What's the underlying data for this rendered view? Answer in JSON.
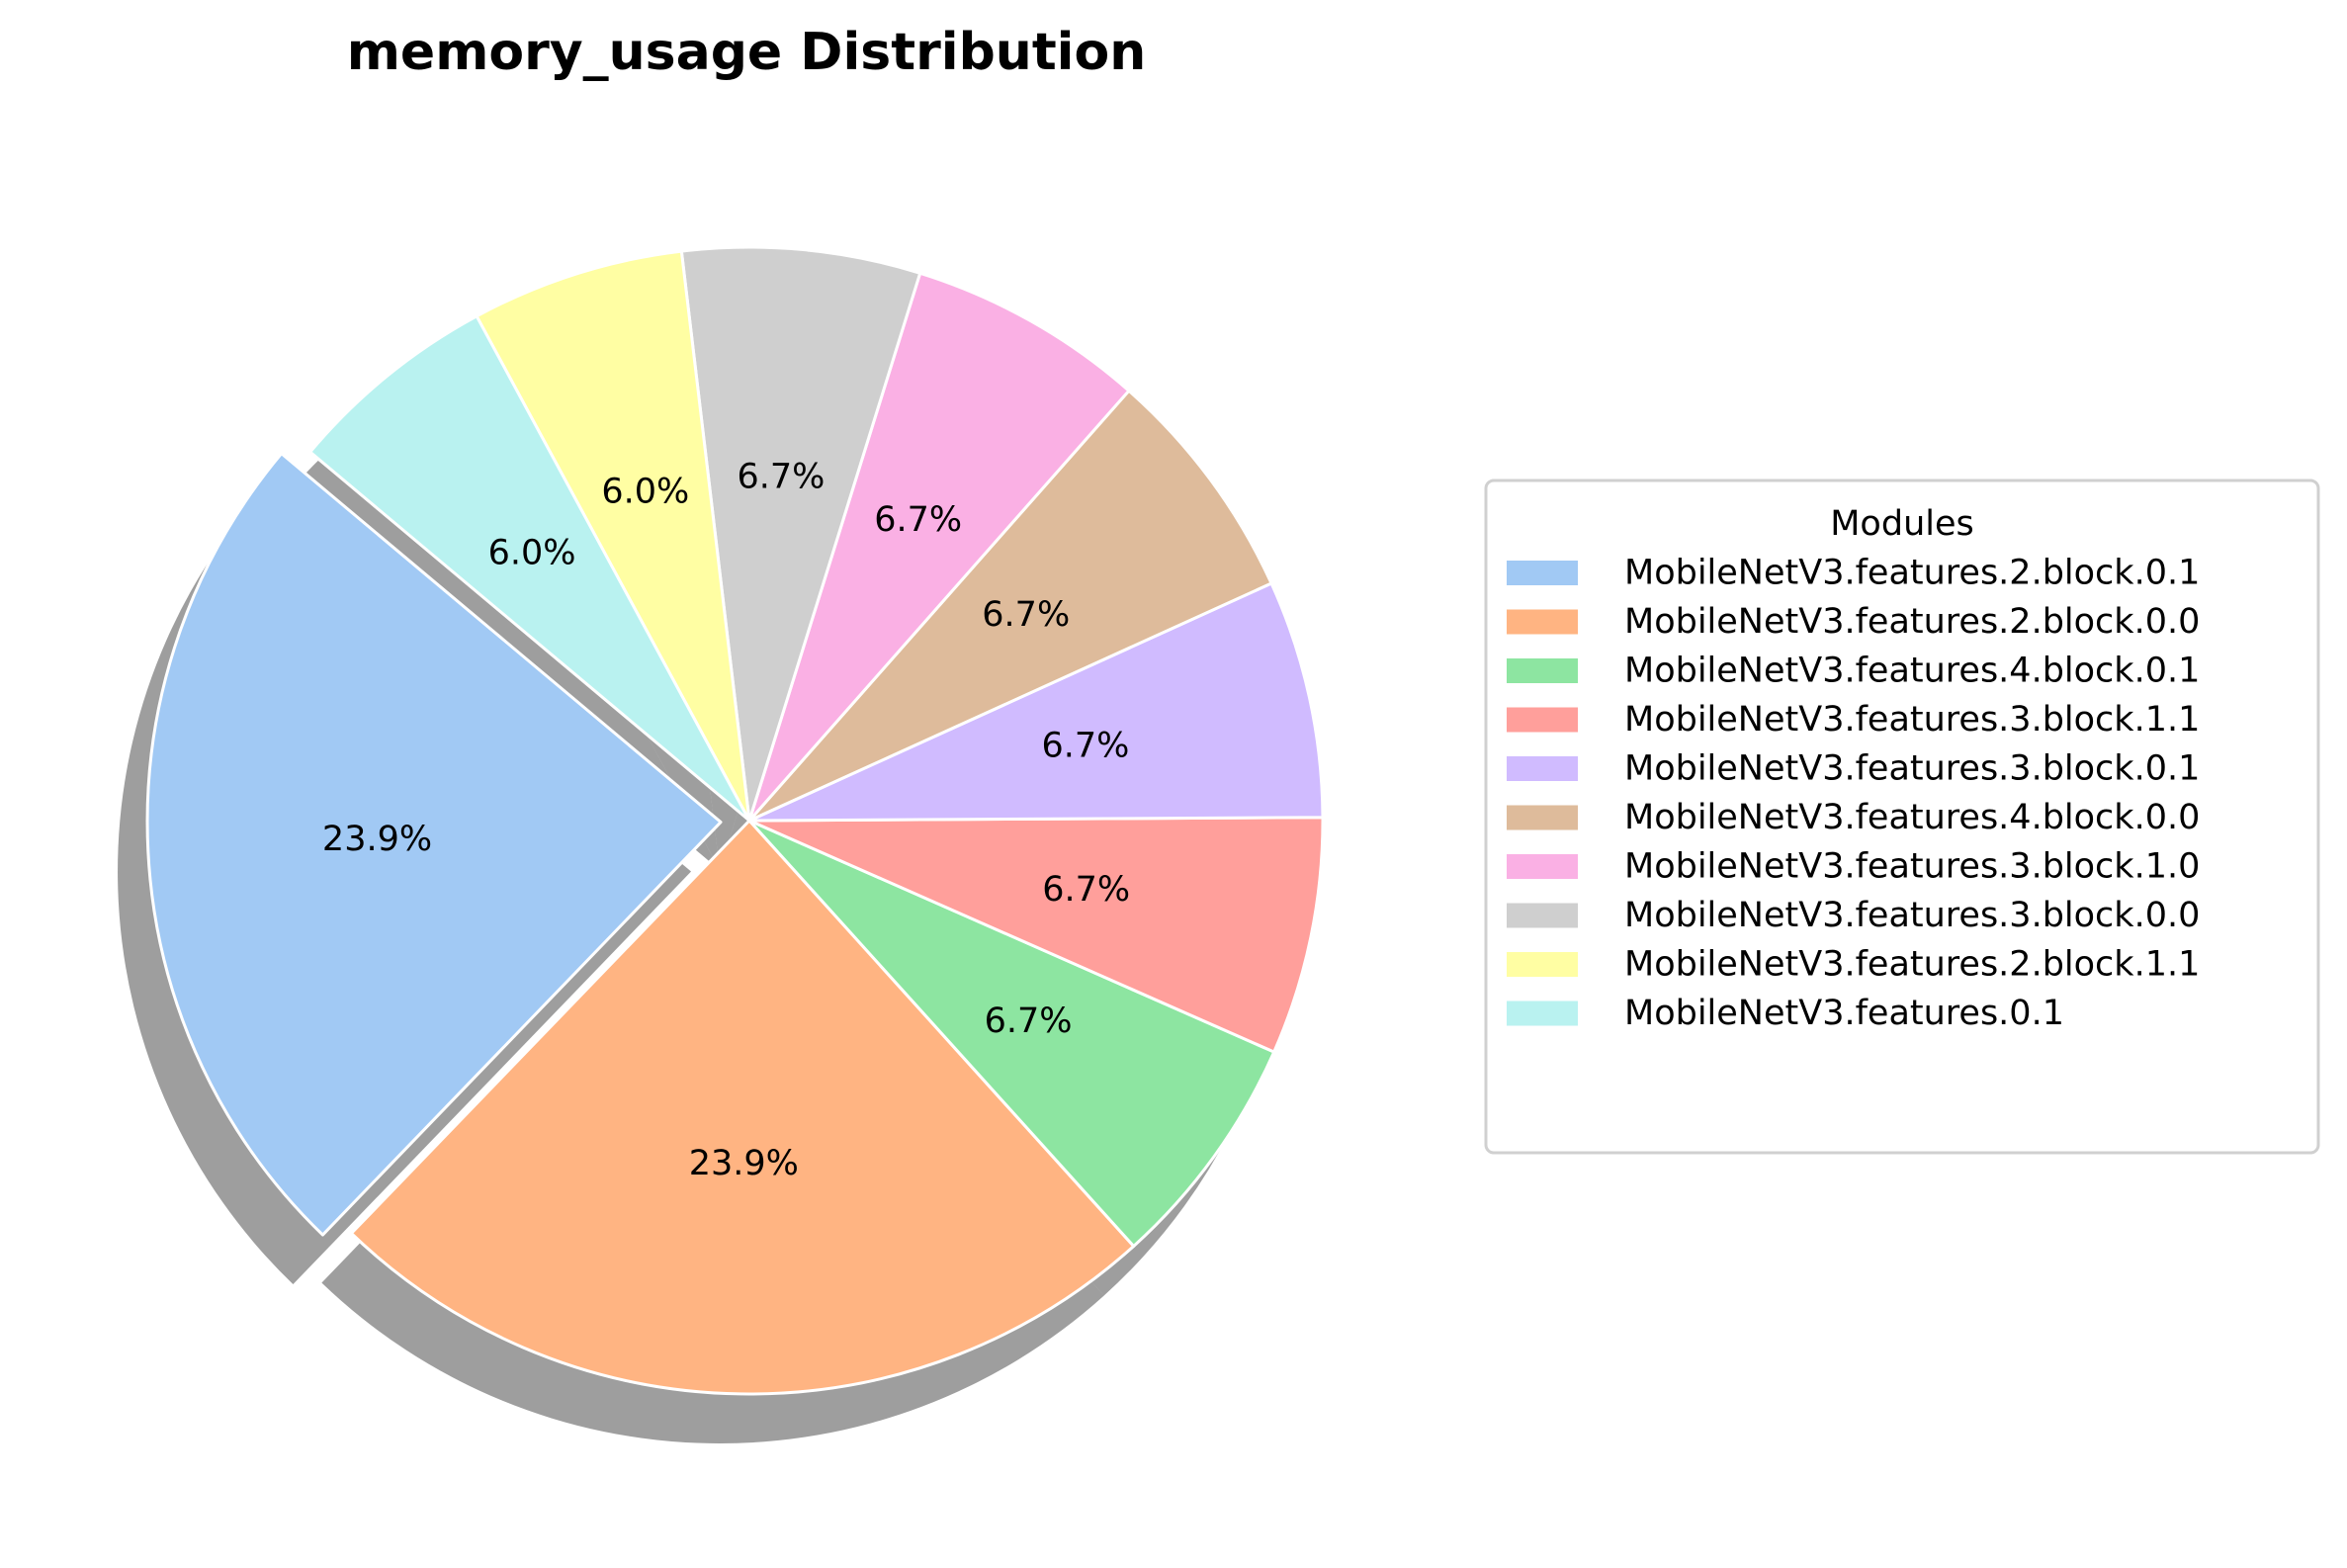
{
  "chart_data": {
    "type": "pie",
    "title": "memory_usage Distribution",
    "legend": {
      "title": "Modules",
      "placement": "right"
    },
    "slices": [
      {
        "label": "MobileNetV3.features.2.block.0.1",
        "value": 23.9,
        "pct_label": "23.9%",
        "color": "#a1c9f4",
        "exploded": true
      },
      {
        "label": "MobileNetV3.features.2.block.0.0",
        "value": 23.9,
        "pct_label": "23.9%",
        "color": "#ffb482",
        "exploded": false
      },
      {
        "label": "MobileNetV3.features.4.block.0.1",
        "value": 6.7,
        "pct_label": "6.7%",
        "color": "#8de5a1",
        "exploded": false
      },
      {
        "label": "MobileNetV3.features.3.block.1.1",
        "value": 6.7,
        "pct_label": "6.7%",
        "color": "#ff9f9b",
        "exploded": false
      },
      {
        "label": "MobileNetV3.features.3.block.0.1",
        "value": 6.7,
        "pct_label": "6.7%",
        "color": "#d0bbff",
        "exploded": false
      },
      {
        "label": "MobileNetV3.features.4.block.0.0",
        "value": 6.7,
        "pct_label": "6.7%",
        "color": "#debb9b",
        "exploded": false
      },
      {
        "label": "MobileNetV3.features.3.block.1.0",
        "value": 6.7,
        "pct_label": "6.7%",
        "color": "#fab0e4",
        "exploded": false
      },
      {
        "label": "MobileNetV3.features.3.block.0.0",
        "value": 6.7,
        "pct_label": "6.7%",
        "color": "#cfcfcf",
        "exploded": false
      },
      {
        "label": "MobileNetV3.features.2.block.1.1",
        "value": 6.0,
        "pct_label": "6.0%",
        "color": "#fffea3",
        "exploded": false
      },
      {
        "label": "MobileNetV3.features.0.1",
        "value": 6.0,
        "pct_label": "6.0%",
        "color": "#b9f2f0",
        "exploded": false
      }
    ]
  }
}
